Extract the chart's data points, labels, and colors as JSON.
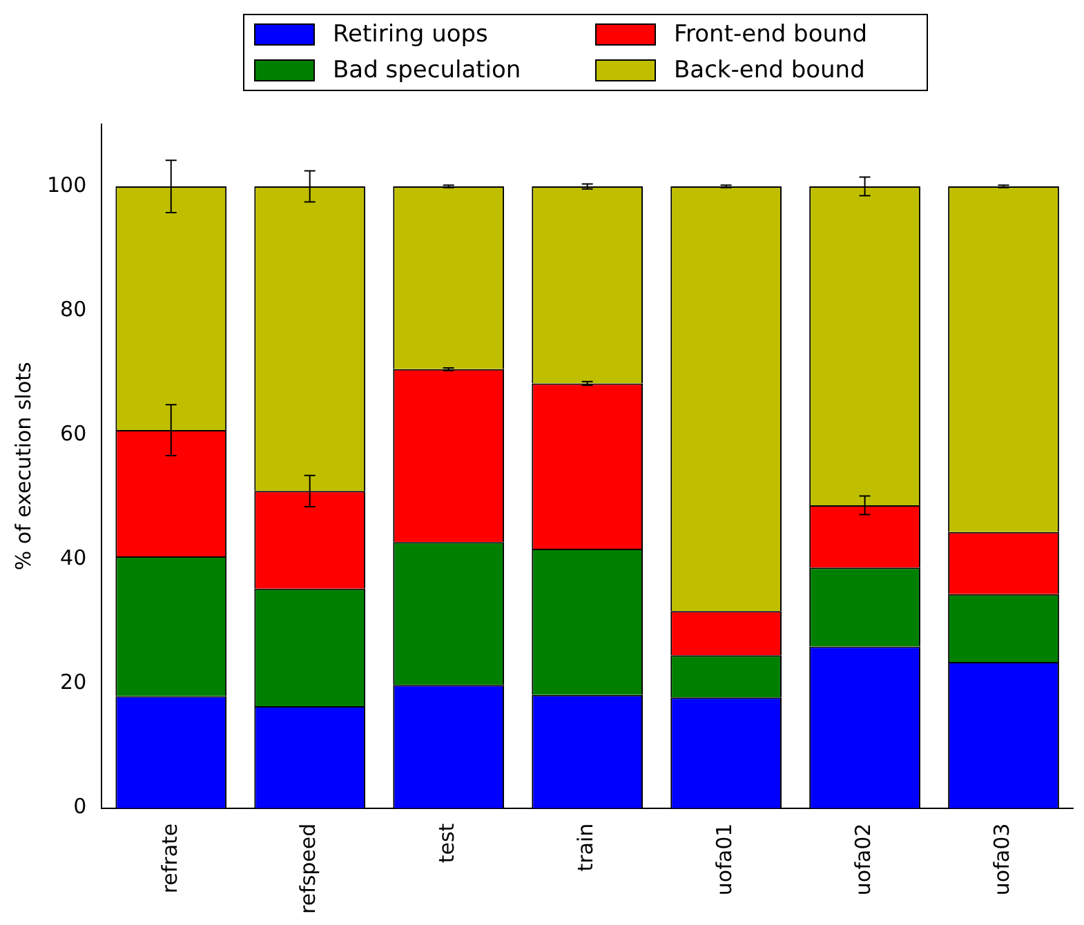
{
  "chart_data": {
    "type": "bar",
    "stacked": true,
    "ylabel": "% of execution slots",
    "categories": [
      "refrate",
      "refspeed",
      "test",
      "train",
      "uofa01",
      "uofa02",
      "uofa03"
    ],
    "series": [
      {
        "name": "Retiring uops",
        "color": "#0000ff",
        "values": [
          18.0,
          16.4,
          19.8,
          18.2,
          17.8,
          26.0,
          23.5
        ]
      },
      {
        "name": "Bad speculation",
        "color": "#008000",
        "values": [
          22.5,
          18.9,
          23.0,
          23.5,
          6.8,
          12.7,
          10.9
        ]
      },
      {
        "name": "Front-end bound",
        "color": "#ff0000",
        "values": [
          20.3,
          15.7,
          27.8,
          26.6,
          7.1,
          10.0,
          10.0
        ],
        "errors": [
          4.1,
          2.5,
          0.2,
          0.3,
          null,
          1.5,
          null
        ]
      },
      {
        "name": "Back-end bound",
        "color": "#bfbf00",
        "values": [
          39.2,
          49.0,
          29.4,
          31.7,
          68.3,
          51.3,
          55.6
        ],
        "errors": [
          4.2,
          2.5,
          0.2,
          0.4,
          0.2,
          1.5,
          0.2
        ]
      }
    ],
    "ylim": [
      0,
      110
    ],
    "yticks": [
      0,
      20,
      40,
      60,
      80,
      100
    ],
    "grid": false,
    "legend": "top"
  }
}
